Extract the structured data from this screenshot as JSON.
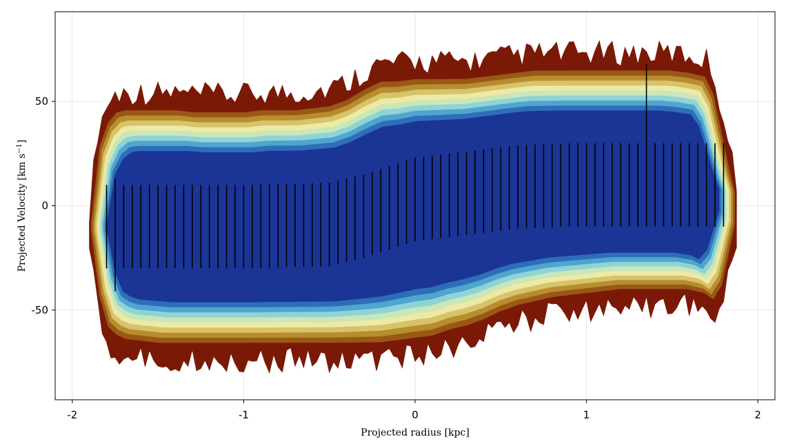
{
  "chart_data": {
    "type": "contour",
    "xlabel": "Projected radius [kpc]",
    "ylabel": "Projected Velocity [km s",
    "ylabel_sup": "−1",
    "ylabel_end": "]",
    "xlim": [
      -2.1,
      2.1
    ],
    "ylim": [
      -93,
      93
    ],
    "xticks": [
      {
        "value": -2,
        "label": "-2"
      },
      {
        "value": -1,
        "label": "-1"
      },
      {
        "value": 0,
        "label": "0"
      },
      {
        "value": 1,
        "label": "1"
      },
      {
        "value": 2,
        "label": "2"
      }
    ],
    "yticks": [
      {
        "value": -50,
        "label": "-50"
      },
      {
        "value": 0,
        "label": "0"
      },
      {
        "value": 50,
        "label": "50"
      }
    ],
    "grid": true,
    "contour_colors": [
      "#7a1a06",
      "#9a5816",
      "#b78d2d",
      "#d7c36b",
      "#eee9a4",
      "#c9e7b8",
      "#8fd3d6",
      "#4fa5cf",
      "#2e6eb8",
      "#1b3596"
    ],
    "envelope": {
      "x": [
        -1.9,
        -1.85,
        -1.8,
        -1.75,
        -1.7,
        -1.6,
        -1.5,
        -1.4,
        -1.3,
        -1.2,
        -1.1,
        -1.0,
        -0.9,
        -0.8,
        -0.7,
        -0.6,
        -0.5,
        -0.4,
        -0.3,
        -0.2,
        -0.1,
        0.0,
        0.1,
        0.2,
        0.3,
        0.4,
        0.5,
        0.6,
        0.7,
        0.8,
        0.9,
        1.0,
        1.1,
        1.2,
        1.3,
        1.4,
        1.5,
        1.6,
        1.7,
        1.75,
        1.8,
        1.85,
        1.88
      ],
      "upper": [
        -8,
        30,
        42,
        47,
        48,
        48,
        48,
        48,
        47,
        47,
        47,
        47,
        48,
        48,
        48,
        49,
        50,
        53,
        58,
        62,
        62,
        63,
        63,
        63,
        63,
        64,
        65,
        66,
        67,
        67,
        67,
        67,
        67,
        67,
        67,
        67,
        67,
        66,
        64,
        55,
        35,
        15,
        5
      ],
      "lower": [
        -12,
        -45,
        -60,
        -64,
        -66,
        -67,
        -68,
        -68,
        -68,
        -68,
        -68,
        -68,
        -68,
        -68,
        -68,
        -68,
        -68,
        -68,
        -68,
        -68,
        -67,
        -66,
        -65,
        -62,
        -60,
        -57,
        -53,
        -50,
        -48,
        -46,
        -45,
        -44,
        -43,
        -42,
        -42,
        -42,
        -42,
        -42,
        -44,
        -47,
        -40,
        -20,
        -8
      ]
    },
    "ridge": {
      "x": [
        -1.8,
        -1.0,
        -0.5,
        -0.3,
        0.0,
        0.3,
        0.6,
        0.9,
        1.2,
        1.5,
        1.8
      ],
      "mid": [
        -10,
        -10,
        -9,
        -5,
        3,
        6,
        9,
        10,
        10,
        10,
        10
      ]
    },
    "error_bars": {
      "x_start": -1.8,
      "x_end": 1.8,
      "step": 0.05,
      "half_width": 20,
      "special": [
        {
          "x": -1.75,
          "lower": -41,
          "upper": 13
        },
        {
          "x": 1.35,
          "lower": -10,
          "upper": 68
        }
      ]
    }
  }
}
